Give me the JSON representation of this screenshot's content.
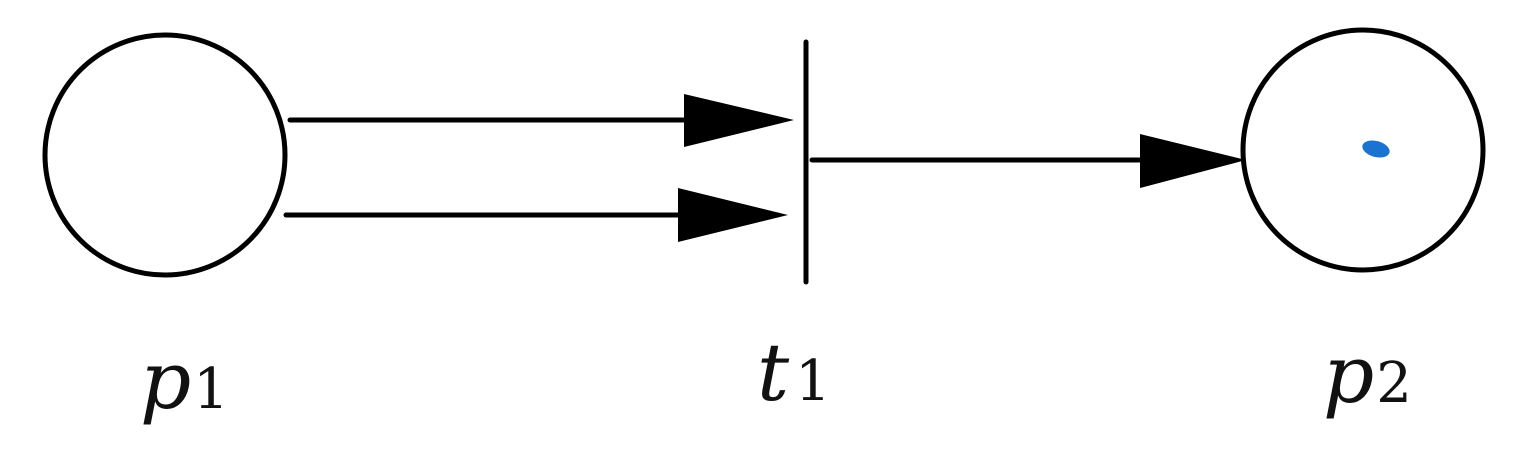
{
  "diagram": {
    "type": "petri-net",
    "places": [
      {
        "id": "p1",
        "label_base": "p",
        "label_sub": "1",
        "tokens": 0
      },
      {
        "id": "p2",
        "label_base": "p",
        "label_sub": "2",
        "tokens": 1
      }
    ],
    "transitions": [
      {
        "id": "t1",
        "label_base": "t",
        "label_sub": "1"
      }
    ],
    "arcs": [
      {
        "from": "p1",
        "to": "t1"
      },
      {
        "from": "p1",
        "to": "t1"
      },
      {
        "from": "t1",
        "to": "p2"
      }
    ],
    "colors": {
      "stroke": "#000000",
      "token": "#1a73d1"
    }
  }
}
